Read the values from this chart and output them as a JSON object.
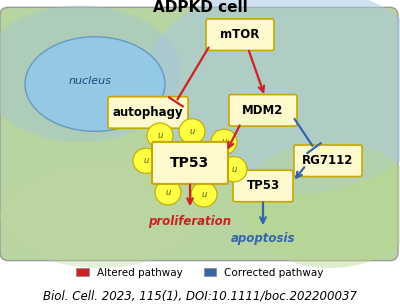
{
  "title": "ADPKD cell",
  "citation": "Biol. Cell. 2023, 115(1), DOI:10.1111/boc.202200037",
  "nucleus_label": "nucleus",
  "box_facecolor": "#fffacd",
  "box_edgecolor": "#c8a800",
  "label_proliferation": "proliferation",
  "label_apoptosis": "apoptosis",
  "red_color": "#cc2222",
  "blue_color": "#3366aa",
  "legend_altered": "Altered pathway",
  "legend_corrected": "Corrected pathway",
  "ubiquitin_color": "#ffff44",
  "ubiquitin_edge": "#bbaa00",
  "cell_bg": "#c8d8b0",
  "cell_blue_tint": "#b0c8e0",
  "nucleus_color": "#88c0e8"
}
